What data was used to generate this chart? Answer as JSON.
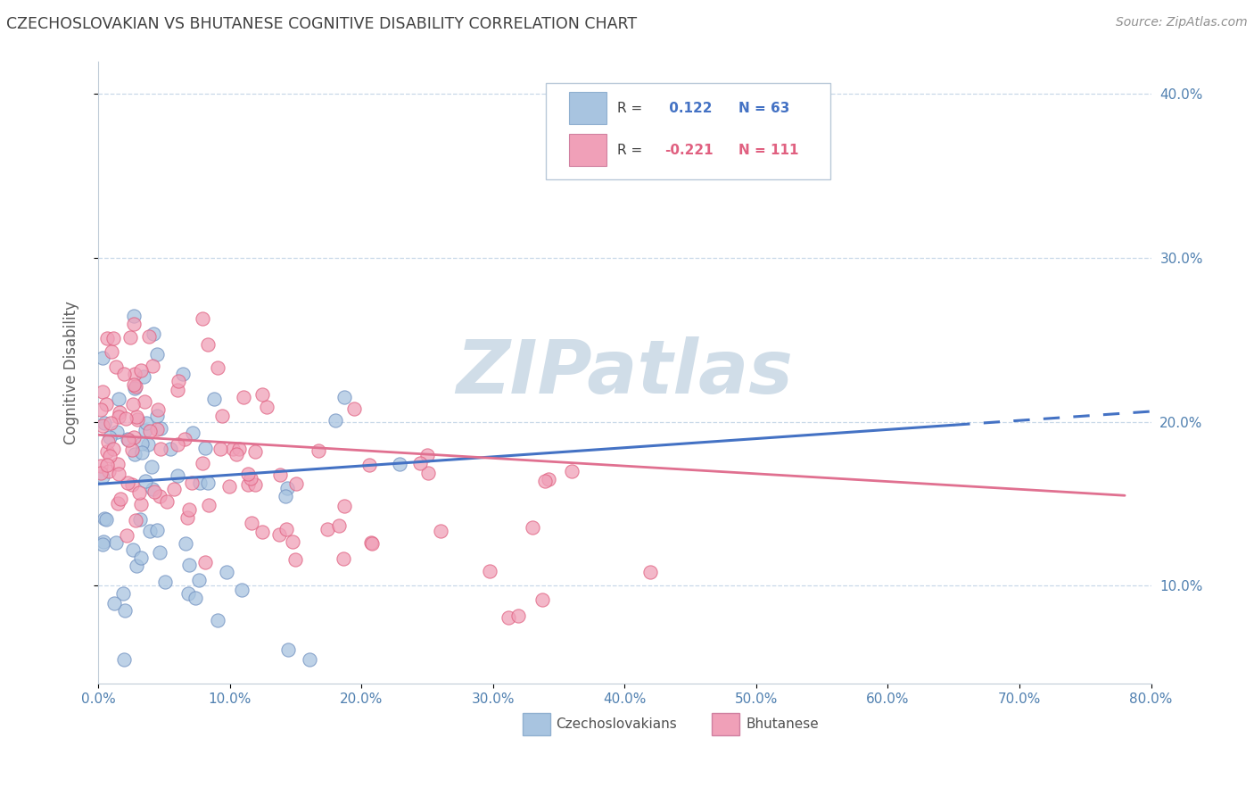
{
  "title": "CZECHOSLOVAKIAN VS BHUTANESE COGNITIVE DISABILITY CORRELATION CHART",
  "source": "Source: ZipAtlas.com",
  "ylabel": "Cognitive Disability",
  "ytick_vals": [
    0.1,
    0.2,
    0.3,
    0.4
  ],
  "xlim": [
    0.0,
    0.8
  ],
  "ylim": [
    0.04,
    0.42
  ],
  "blue_R": 0.122,
  "blue_N": 63,
  "pink_R": -0.221,
  "pink_N": 111,
  "blue_color": "#a8c4e0",
  "pink_color": "#f0a0b8",
  "blue_edge_color": "#7090c0",
  "pink_edge_color": "#e06080",
  "blue_line_color": "#4472c4",
  "pink_line_color": "#e07090",
  "watermark_color": "#d0dde8",
  "title_color": "#404040",
  "axis_label_color": "#5080b0",
  "background_color": "#ffffff",
  "grid_color": "#c8d8e8",
  "legend_blue_text": "#4472c4",
  "legend_pink_text": "#e06080"
}
